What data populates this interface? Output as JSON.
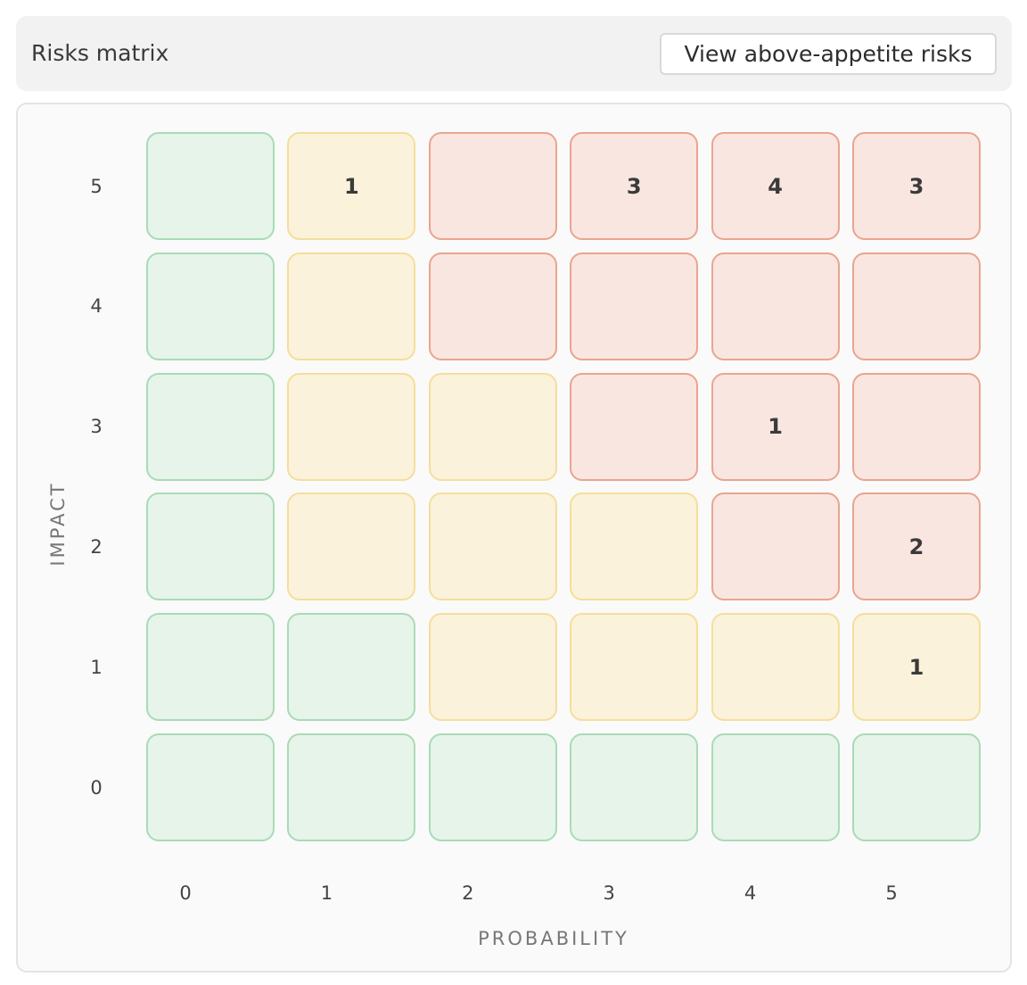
{
  "header": {
    "title": "Risks matrix",
    "button_label": "View above-appetite risks"
  },
  "matrix": {
    "x_axis_label": "PROBABILITY",
    "y_axis_label": "IMPACT",
    "x_ticks": [
      "0",
      "1",
      "2",
      "3",
      "4",
      "5"
    ],
    "y_ticks": [
      "5",
      "4",
      "3",
      "2",
      "1",
      "0"
    ],
    "level_colors": {
      "green": "#e6f4ea",
      "yellow": "#fbf2dc",
      "red": "#f9e6e1"
    },
    "rows": [
      {
        "impact": 5,
        "cells": [
          {
            "probability": 0,
            "level": "green",
            "count": ""
          },
          {
            "probability": 1,
            "level": "yellow",
            "count": "1"
          },
          {
            "probability": 2,
            "level": "red",
            "count": ""
          },
          {
            "probability": 3,
            "level": "red",
            "count": "3"
          },
          {
            "probability": 4,
            "level": "red",
            "count": "4"
          },
          {
            "probability": 5,
            "level": "red",
            "count": "3"
          }
        ]
      },
      {
        "impact": 4,
        "cells": [
          {
            "probability": 0,
            "level": "green",
            "count": ""
          },
          {
            "probability": 1,
            "level": "yellow",
            "count": ""
          },
          {
            "probability": 2,
            "level": "red",
            "count": ""
          },
          {
            "probability": 3,
            "level": "red",
            "count": ""
          },
          {
            "probability": 4,
            "level": "red",
            "count": ""
          },
          {
            "probability": 5,
            "level": "red",
            "count": ""
          }
        ]
      },
      {
        "impact": 3,
        "cells": [
          {
            "probability": 0,
            "level": "green",
            "count": ""
          },
          {
            "probability": 1,
            "level": "yellow",
            "count": ""
          },
          {
            "probability": 2,
            "level": "yellow",
            "count": ""
          },
          {
            "probability": 3,
            "level": "red",
            "count": ""
          },
          {
            "probability": 4,
            "level": "red",
            "count": "1"
          },
          {
            "probability": 5,
            "level": "red",
            "count": ""
          }
        ]
      },
      {
        "impact": 2,
        "cells": [
          {
            "probability": 0,
            "level": "green",
            "count": ""
          },
          {
            "probability": 1,
            "level": "yellow",
            "count": ""
          },
          {
            "probability": 2,
            "level": "yellow",
            "count": ""
          },
          {
            "probability": 3,
            "level": "yellow",
            "count": ""
          },
          {
            "probability": 4,
            "level": "red",
            "count": ""
          },
          {
            "probability": 5,
            "level": "red",
            "count": "2"
          }
        ]
      },
      {
        "impact": 1,
        "cells": [
          {
            "probability": 0,
            "level": "green",
            "count": ""
          },
          {
            "probability": 1,
            "level": "green",
            "count": ""
          },
          {
            "probability": 2,
            "level": "yellow",
            "count": ""
          },
          {
            "probability": 3,
            "level": "yellow",
            "count": ""
          },
          {
            "probability": 4,
            "level": "yellow",
            "count": ""
          },
          {
            "probability": 5,
            "level": "yellow",
            "count": "1"
          }
        ]
      },
      {
        "impact": 0,
        "cells": [
          {
            "probability": 0,
            "level": "green",
            "count": ""
          },
          {
            "probability": 1,
            "level": "green",
            "count": ""
          },
          {
            "probability": 2,
            "level": "green",
            "count": ""
          },
          {
            "probability": 3,
            "level": "green",
            "count": ""
          },
          {
            "probability": 4,
            "level": "green",
            "count": ""
          },
          {
            "probability": 5,
            "level": "green",
            "count": ""
          }
        ]
      }
    ]
  }
}
